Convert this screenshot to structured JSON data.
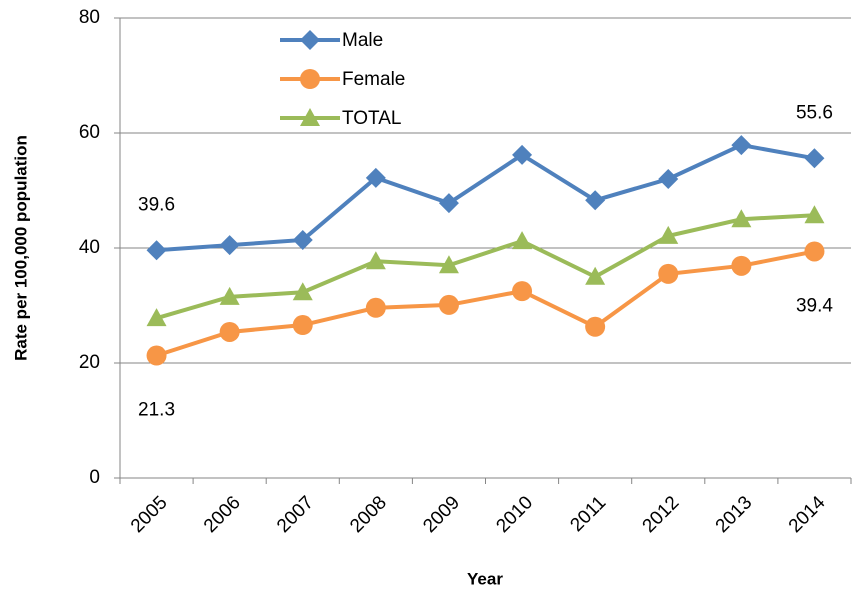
{
  "chart_data": {
    "type": "line",
    "x_label": "Year",
    "y_label": "Rate per 100,000 population",
    "categories": [
      "2005",
      "2006",
      "2007",
      "2008",
      "2009",
      "2010",
      "2011",
      "2012",
      "2013",
      "2014"
    ],
    "series": [
      {
        "name": "Male",
        "color": "#4f81bd",
        "marker": "diamond",
        "values": [
          39.6,
          40.5,
          41.4,
          52.2,
          47.8,
          56.2,
          48.3,
          52.0,
          57.9,
          55.6
        ],
        "value_labels": [
          "39.6",
          null,
          null,
          null,
          null,
          null,
          null,
          null,
          null,
          "55.6"
        ]
      },
      {
        "name": "Female",
        "color": "#f79646",
        "marker": "circle",
        "values": [
          21.3,
          25.4,
          26.6,
          29.6,
          30.1,
          32.5,
          26.3,
          35.5,
          36.9,
          39.4
        ],
        "value_labels": [
          "21.3",
          null,
          null,
          null,
          null,
          null,
          null,
          null,
          null,
          "39.4"
        ]
      },
      {
        "name": "TOTAL",
        "color": "#9bbb59",
        "marker": "triangle",
        "values": [
          27.8,
          31.5,
          32.3,
          37.7,
          37.0,
          41.2,
          35.0,
          42.1,
          45.0,
          45.7
        ]
      }
    ],
    "ylim": [
      0,
      80
    ],
    "yticks": [
      0,
      20,
      40,
      60,
      80
    ],
    "grid": true,
    "legend": "upper left"
  }
}
